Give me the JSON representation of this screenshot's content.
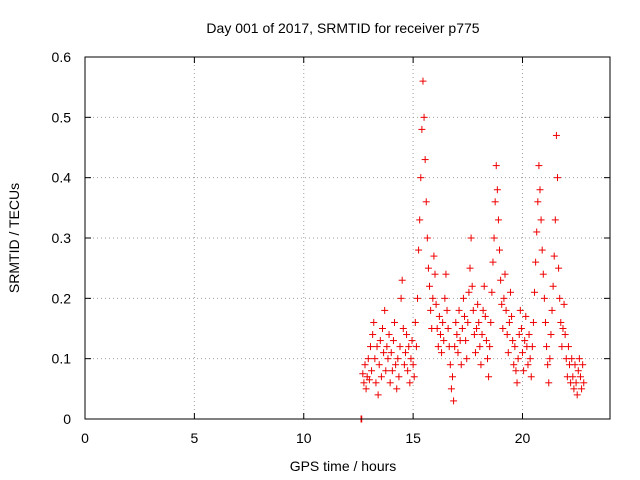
{
  "chart_data": {
    "type": "scatter",
    "title": "Day 001 of 2017, SRMTID for receiver p775",
    "xlabel": "GPS time / hours",
    "ylabel": "SRMTID / TECUs",
    "xlim": [
      0,
      24
    ],
    "ylim": [
      0,
      0.6
    ],
    "xticks": [
      0,
      5,
      10,
      15,
      20
    ],
    "xtick_labels": [
      "0",
      "5",
      "10",
      "15",
      "20"
    ],
    "yticks": [
      0,
      0.1,
      0.2,
      0.3,
      0.4,
      0.5,
      0.6
    ],
    "ytick_labels": [
      "0",
      "0.1",
      "0.2",
      "0.3",
      "0.4",
      "0.5",
      "0.6"
    ],
    "grid": true,
    "marker": "+",
    "color": "#ee0000",
    "series": [
      {
        "name": "SRMTID",
        "points": [
          [
            12.62,
            0.0
          ],
          [
            12.65,
            0.0
          ],
          [
            12.7,
            0.075
          ],
          [
            12.75,
            0.06
          ],
          [
            12.8,
            0.09
          ],
          [
            12.85,
            0.05
          ],
          [
            12.9,
            0.07
          ],
          [
            12.95,
            0.1
          ],
          [
            13.0,
            0.065
          ],
          [
            13.05,
            0.12
          ],
          [
            13.1,
            0.08
          ],
          [
            13.15,
            0.14
          ],
          [
            13.2,
            0.16
          ],
          [
            13.25,
            0.1
          ],
          [
            13.3,
            0.06
          ],
          [
            13.35,
            0.12
          ],
          [
            13.4,
            0.04
          ],
          [
            13.45,
            0.09
          ],
          [
            13.5,
            0.13
          ],
          [
            13.55,
            0.07
          ],
          [
            13.6,
            0.15
          ],
          [
            13.65,
            0.11
          ],
          [
            13.7,
            0.18
          ],
          [
            13.75,
            0.08
          ],
          [
            13.8,
            0.12
          ],
          [
            13.85,
            0.1
          ],
          [
            13.9,
            0.14
          ],
          [
            13.95,
            0.06
          ],
          [
            14.0,
            0.11
          ],
          [
            14.05,
            0.08
          ],
          [
            14.1,
            0.13
          ],
          [
            14.15,
            0.16
          ],
          [
            14.2,
            0.09
          ],
          [
            14.25,
            0.05
          ],
          [
            14.3,
            0.1
          ],
          [
            14.35,
            0.07
          ],
          [
            14.4,
            0.12
          ],
          [
            14.45,
            0.2
          ],
          [
            14.5,
            0.23
          ],
          [
            14.55,
            0.15
          ],
          [
            14.6,
            0.09
          ],
          [
            14.65,
            0.11
          ],
          [
            14.7,
            0.14
          ],
          [
            14.75,
            0.08
          ],
          [
            14.8,
            0.12
          ],
          [
            14.85,
            0.06
          ],
          [
            14.9,
            0.1
          ],
          [
            14.95,
            0.13
          ],
          [
            15.0,
            0.09
          ],
          [
            15.05,
            0.07
          ],
          [
            15.1,
            0.16
          ],
          [
            15.15,
            0.12
          ],
          [
            15.2,
            0.2
          ],
          [
            15.25,
            0.28
          ],
          [
            15.3,
            0.33
          ],
          [
            15.35,
            0.4
          ],
          [
            15.4,
            0.48
          ],
          [
            15.45,
            0.56
          ],
          [
            15.5,
            0.5
          ],
          [
            15.55,
            0.43
          ],
          [
            15.6,
            0.36
          ],
          [
            15.65,
            0.3
          ],
          [
            15.7,
            0.25
          ],
          [
            15.75,
            0.22
          ],
          [
            15.8,
            0.18
          ],
          [
            15.85,
            0.15
          ],
          [
            15.9,
            0.2
          ],
          [
            15.95,
            0.27
          ],
          [
            16.0,
            0.24
          ],
          [
            16.05,
            0.19
          ],
          [
            16.1,
            0.15
          ],
          [
            16.15,
            0.12
          ],
          [
            16.2,
            0.17
          ],
          [
            16.25,
            0.14
          ],
          [
            16.3,
            0.11
          ],
          [
            16.35,
            0.16
          ],
          [
            16.4,
            0.13
          ],
          [
            16.45,
            0.2
          ],
          [
            16.5,
            0.24
          ],
          [
            16.55,
            0.18
          ],
          [
            16.6,
            0.15
          ],
          [
            16.65,
            0.12
          ],
          [
            16.7,
            0.09
          ],
          [
            16.75,
            0.05
          ],
          [
            16.8,
            0.07
          ],
          [
            16.85,
            0.03
          ],
          [
            16.9,
            0.12
          ],
          [
            16.95,
            0.16
          ],
          [
            17.0,
            0.14
          ],
          [
            17.05,
            0.11
          ],
          [
            17.1,
            0.18
          ],
          [
            17.15,
            0.13
          ],
          [
            17.2,
            0.09
          ],
          [
            17.25,
            0.15
          ],
          [
            17.3,
            0.2
          ],
          [
            17.35,
            0.17
          ],
          [
            17.4,
            0.13
          ],
          [
            17.45,
            0.1
          ],
          [
            17.5,
            0.16
          ],
          [
            17.55,
            0.21
          ],
          [
            17.6,
            0.25
          ],
          [
            17.65,
            0.3
          ],
          [
            17.7,
            0.22
          ],
          [
            17.75,
            0.18
          ],
          [
            17.8,
            0.14
          ],
          [
            17.85,
            0.11
          ],
          [
            17.9,
            0.15
          ],
          [
            17.95,
            0.19
          ],
          [
            18.0,
            0.16
          ],
          [
            18.05,
            0.12
          ],
          [
            18.1,
            0.09
          ],
          [
            18.15,
            0.14
          ],
          [
            18.2,
            0.18
          ],
          [
            18.25,
            0.22
          ],
          [
            18.3,
            0.17
          ],
          [
            18.35,
            0.13
          ],
          [
            18.4,
            0.1
          ],
          [
            18.45,
            0.07
          ],
          [
            18.5,
            0.12
          ],
          [
            18.55,
            0.16
          ],
          [
            18.6,
            0.21
          ],
          [
            18.65,
            0.26
          ],
          [
            18.7,
            0.3
          ],
          [
            18.75,
            0.36
          ],
          [
            18.8,
            0.42
          ],
          [
            18.85,
            0.38
          ],
          [
            18.9,
            0.33
          ],
          [
            18.95,
            0.28
          ],
          [
            19.0,
            0.23
          ],
          [
            19.05,
            0.19
          ],
          [
            19.1,
            0.15
          ],
          [
            19.15,
            0.2
          ],
          [
            19.2,
            0.24
          ],
          [
            19.25,
            0.18
          ],
          [
            19.3,
            0.14
          ],
          [
            19.35,
            0.11
          ],
          [
            19.4,
            0.16
          ],
          [
            19.45,
            0.21
          ],
          [
            19.5,
            0.17
          ],
          [
            19.55,
            0.13
          ],
          [
            19.6,
            0.09
          ],
          [
            19.65,
            0.12
          ],
          [
            19.7,
            0.08
          ],
          [
            19.75,
            0.06
          ],
          [
            19.8,
            0.1
          ],
          [
            19.85,
            0.14
          ],
          [
            19.9,
            0.18
          ],
          [
            19.95,
            0.15
          ],
          [
            20.0,
            0.11
          ],
          [
            20.05,
            0.08
          ],
          [
            20.1,
            0.13
          ],
          [
            20.15,
            0.17
          ],
          [
            20.2,
            0.12
          ],
          [
            20.25,
            0.09
          ],
          [
            20.3,
            0.14
          ],
          [
            20.35,
            0.1
          ],
          [
            20.4,
            0.07
          ],
          [
            20.45,
            0.12
          ],
          [
            20.5,
            0.16
          ],
          [
            20.55,
            0.21
          ],
          [
            20.6,
            0.26
          ],
          [
            20.65,
            0.31
          ],
          [
            20.7,
            0.36
          ],
          [
            20.75,
            0.42
          ],
          [
            20.8,
            0.38
          ],
          [
            20.85,
            0.33
          ],
          [
            20.9,
            0.28
          ],
          [
            20.95,
            0.24
          ],
          [
            21.0,
            0.2
          ],
          [
            21.05,
            0.16
          ],
          [
            21.1,
            0.12
          ],
          [
            21.15,
            0.09
          ],
          [
            21.2,
            0.06
          ],
          [
            21.25,
            0.1
          ],
          [
            21.3,
            0.14
          ],
          [
            21.35,
            0.18
          ],
          [
            21.4,
            0.22
          ],
          [
            21.45,
            0.27
          ],
          [
            21.5,
            0.33
          ],
          [
            21.55,
            0.47
          ],
          [
            21.6,
            0.4
          ],
          [
            21.65,
            0.25
          ],
          [
            21.7,
            0.2
          ],
          [
            21.75,
            0.16
          ],
          [
            21.8,
            0.12
          ],
          [
            21.85,
            0.15
          ],
          [
            21.9,
            0.19
          ],
          [
            21.95,
            0.14
          ],
          [
            22.0,
            0.1
          ],
          [
            22.05,
            0.07
          ],
          [
            22.1,
            0.12
          ],
          [
            22.15,
            0.09
          ],
          [
            22.2,
            0.06
          ],
          [
            22.25,
            0.1
          ],
          [
            22.3,
            0.07
          ],
          [
            22.35,
            0.05
          ],
          [
            22.4,
            0.09
          ],
          [
            22.45,
            0.06
          ],
          [
            22.5,
            0.04
          ],
          [
            22.55,
            0.08
          ],
          [
            22.6,
            0.1
          ],
          [
            22.65,
            0.07
          ],
          [
            22.7,
            0.05
          ],
          [
            22.75,
            0.09
          ],
          [
            22.8,
            0.06
          ]
        ]
      }
    ]
  }
}
